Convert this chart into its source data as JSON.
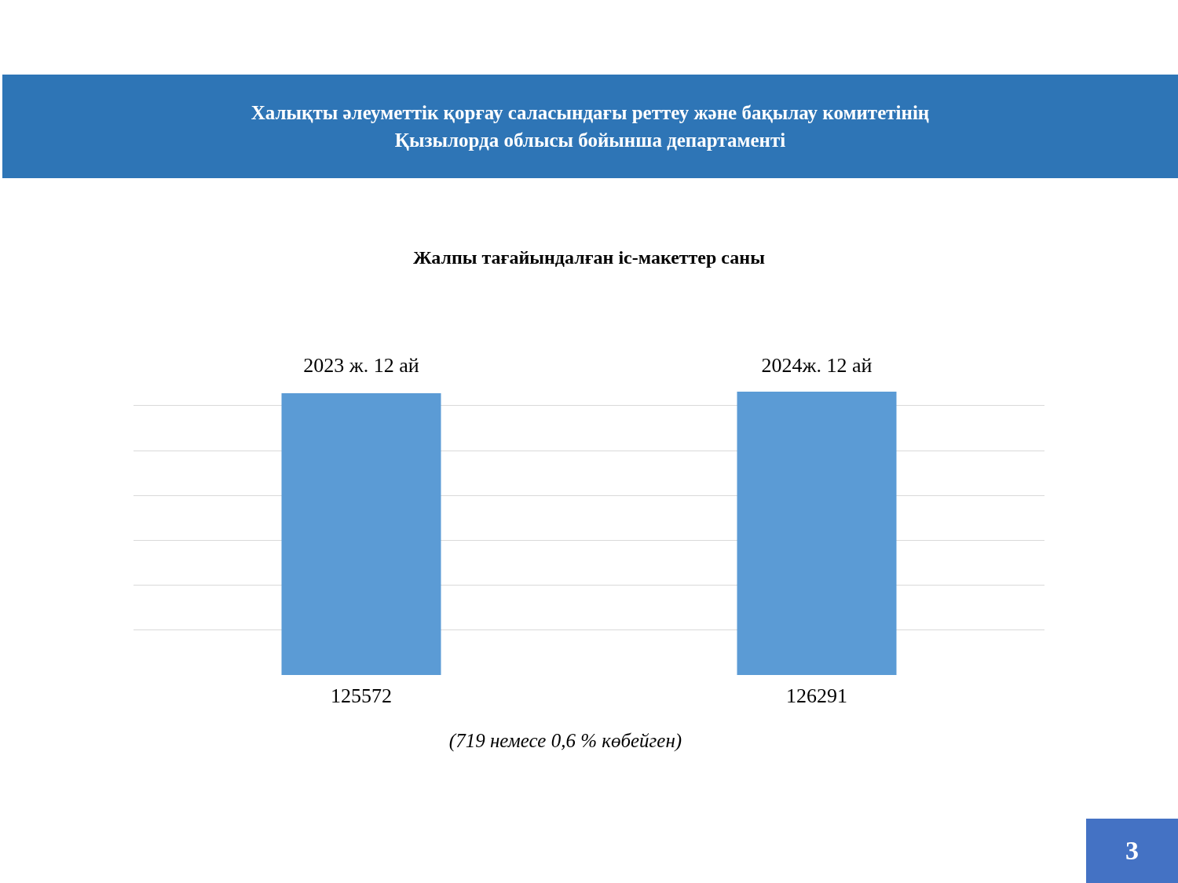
{
  "chart_data": {
    "type": "bar",
    "title": "Халықты әлеуметтік қорғау саласындағы реттеу және бақылау комитетінің\nҚызылорда облысы бойынша департаменті",
    "subtitle": "Жалпы тағайындалған іс-макеттер саны",
    "categories": [
      "2023 ж. 12 ай",
      "2024ж. 12 ай"
    ],
    "values": [
      125572,
      126291
    ],
    "color": "#5b9bd5",
    "data_labels": true,
    "grid": "y",
    "annotations": [
      "(719 немесе  0,6 %  көбейген)",
      "3"
    ]
  }
}
